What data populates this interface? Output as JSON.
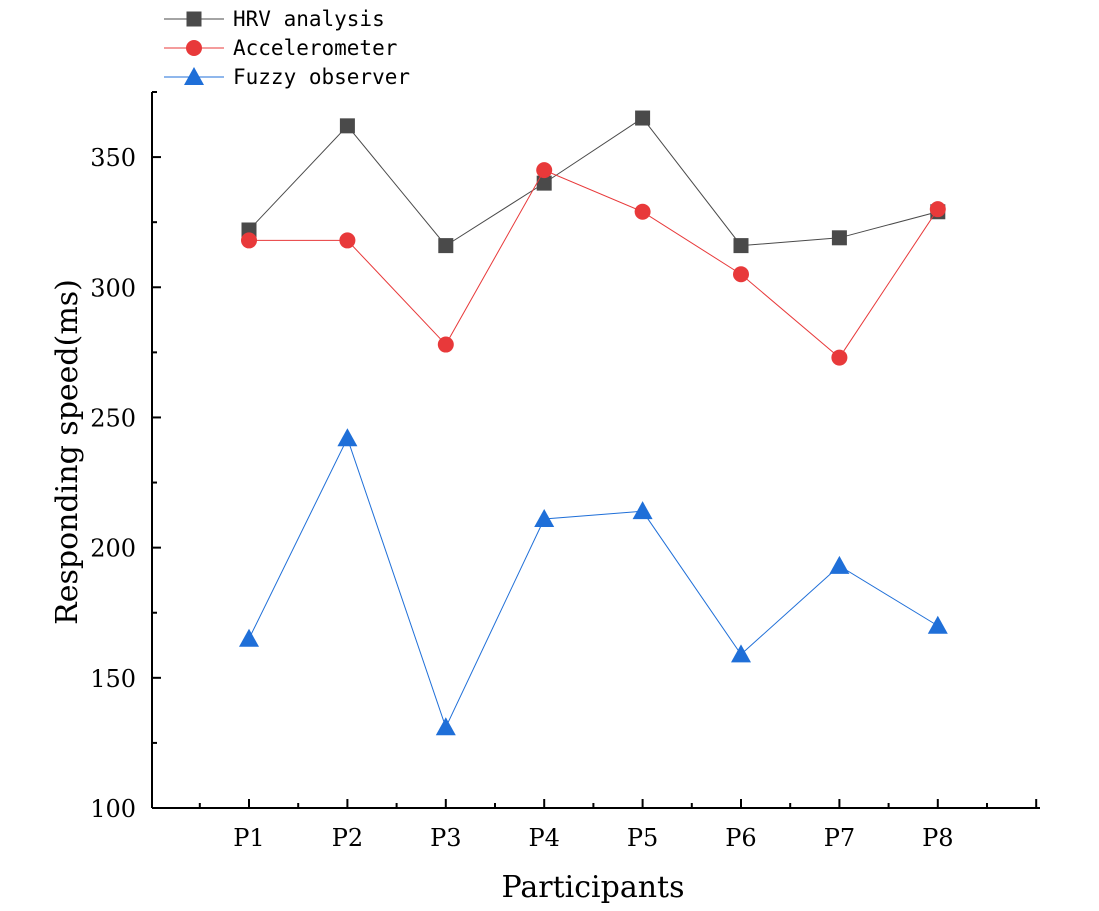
{
  "chart_data": {
    "type": "line",
    "title": "",
    "xlabel": "Participants",
    "ylabel": "Responding speed(ms)",
    "categories": [
      "P1",
      "P2",
      "P3",
      "P4",
      "P5",
      "P6",
      "P7",
      "P8"
    ],
    "ylim": [
      100,
      375
    ],
    "yticks": [
      "100",
      "150",
      "200",
      "250",
      "300",
      "350"
    ],
    "legend_position": "top-left",
    "grid": false,
    "series": [
      {
        "name": "HRV analysis",
        "marker": "square",
        "color": "#4a4a4a",
        "values": [
          322,
          362,
          316,
          340,
          365,
          316,
          319,
          329
        ]
      },
      {
        "name": "Accelerometer",
        "marker": "circle",
        "color": "#e8393a",
        "values": [
          318,
          318,
          278,
          345,
          329,
          305,
          273,
          330
        ]
      },
      {
        "name": "Fuzzy observer",
        "marker": "triangle",
        "color": "#1f6fd8",
        "values": [
          165,
          242,
          131,
          211,
          214,
          159,
          193,
          170
        ]
      }
    ]
  }
}
